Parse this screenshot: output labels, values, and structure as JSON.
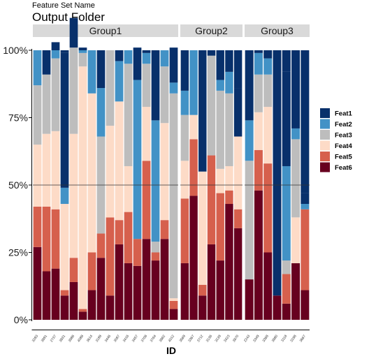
{
  "header": {
    "subtitle": "Feature Set Name",
    "title": "Output Folder"
  },
  "chart_data": {
    "type": "bar",
    "stacked": "percent",
    "facet_labels": [
      "Group1",
      "Group2",
      "Group3"
    ],
    "xlabel": "ID",
    "ylabel": "",
    "ylim": [
      0,
      1
    ],
    "y_ticks": [
      "0%",
      "25%",
      "50%",
      "75%",
      "100%"
    ],
    "reference_line": 0.5,
    "series_order": [
      "Feat1",
      "Feat2",
      "Feat3",
      "Feat4",
      "Feat5",
      "Feat6"
    ],
    "colors": {
      "Feat1": "#08306b",
      "Feat2": "#4292c6",
      "Feat3": "#bdbdbd",
      "Feat4": "#fddbc7",
      "Feat5": "#d6604d",
      "Feat6": "#67001f"
    },
    "legend_position": "right",
    "facets": [
      {
        "name": "Group1",
        "ids": [
          "3283",
          "3891",
          "2737",
          "3831",
          "3986",
          "4088",
          "3614",
          "3189",
          "3446",
          "3087",
          "3416",
          "3457",
          "3708",
          "3764",
          "3862",
          "4012"
        ],
        "values": {
          "Feat1": [
            0.0,
            0.09,
            0.03,
            0.5,
            0.11,
            0.01,
            0.0,
            0.0,
            0.0,
            0.04,
            0.0,
            0.12,
            0.01,
            0.0,
            0.0,
            0.13
          ],
          "Feat2": [
            0.13,
            0.0,
            0.03,
            0.06,
            0.0,
            0.01,
            0.16,
            0.18,
            0.0,
            0.15,
            0.05,
            0.59,
            0.04,
            0.45,
            0.06,
            0.04
          ],
          "Feat3": [
            0.22,
            0.22,
            0.27,
            0.0,
            0.32,
            0.05,
            0.0,
            0.36,
            0.28,
            0.0,
            0.38,
            0.0,
            0.16,
            0.04,
            0.21,
            0.76
          ],
          "Feat4": [
            0.23,
            0.27,
            0.29,
            0.32,
            0.46,
            0.9,
            0.59,
            0.0,
            0.34,
            0.44,
            0.17,
            0.0,
            0.2,
            0.0,
            0.36,
            0.01
          ],
          "Feat5": [
            0.15,
            0.24,
            0.22,
            0.02,
            0.09,
            0.01,
            0.14,
            0.09,
            0.29,
            0.09,
            0.19,
            0.1,
            0.29,
            0.03,
            0.07,
            0.03
          ],
          "Feat6": [
            0.27,
            0.18,
            0.19,
            0.09,
            0.14,
            0.03,
            0.11,
            0.23,
            0.09,
            0.28,
            0.21,
            0.2,
            0.3,
            0.22,
            0.3,
            0.04
          ]
        }
      },
      {
        "name": "Group2",
        "ids": [
          "3569",
          "3367",
          "3712",
          "3136",
          "3139",
          "3423",
          "3870"
        ],
        "values": {
          "Feat1": [
            0.15,
            0.0,
            0.45,
            0.02,
            0.11,
            0.08,
            0.18
          ],
          "Feat2": [
            0.09,
            0.24,
            0.0,
            0.0,
            0.04,
            0.08,
            0.0
          ],
          "Feat3": [
            0.17,
            0.0,
            0.0,
            0.37,
            0.29,
            0.27,
            0.0
          ],
          "Feat4": [
            0.14,
            0.09,
            0.42,
            0.0,
            0.09,
            0.09,
            0.27
          ],
          "Feat5": [
            0.24,
            0.21,
            0.04,
            0.33,
            0.25,
            0.05,
            0.07
          ],
          "Feat6": [
            0.21,
            0.46,
            0.09,
            0.28,
            0.22,
            0.43,
            0.34
          ]
        }
      },
      {
        "name": "Group3",
        "ids": [
          "2243",
          "3349",
          "3368",
          "3880",
          "3118",
          "3198",
          "3667"
        ],
        "values": {
          "Feat1": [
            0.0,
            0.0,
            0.03,
            0.0,
            0.35,
            0.0,
            0.04
          ],
          "Feat2": [
            0.15,
            0.08,
            0.06,
            0.0,
            0.35,
            0.04,
            0.02
          ],
          "Feat3": [
            0.44,
            0.14,
            0.12,
            0.0,
            0.05,
            0.29,
            0.0
          ],
          "Feat4": [
            0.0,
            0.14,
            0.21,
            0.0,
            0.0,
            0.17,
            0.0
          ],
          "Feat5": [
            0.0,
            0.15,
            0.33,
            0.0,
            0.11,
            0.0,
            0.3
          ],
          "Feat6": [
            0.15,
            0.48,
            0.25,
            0.09,
            0.06,
            0.21,
            0.11
          ]
        }
      }
    ]
  }
}
